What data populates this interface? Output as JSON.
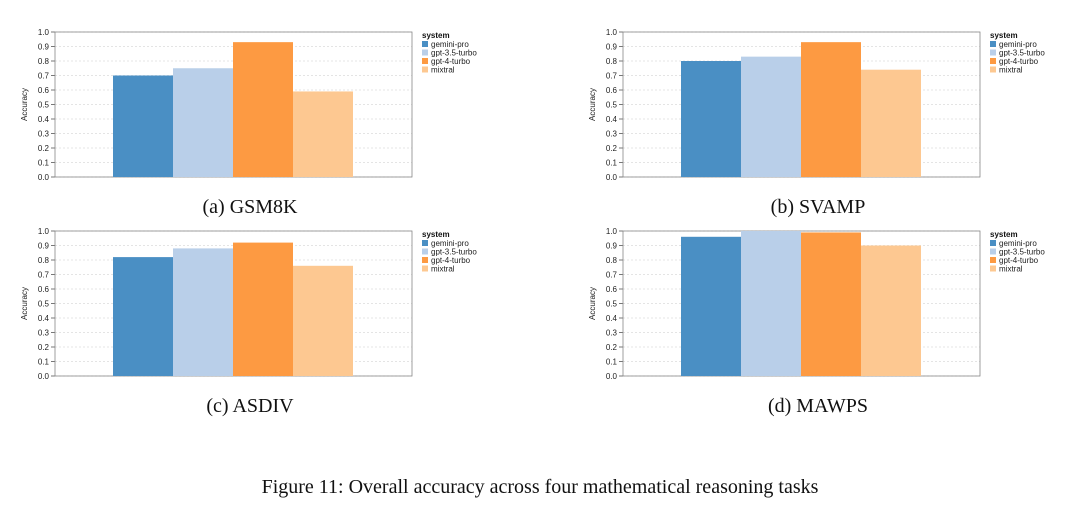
{
  "figure_caption": "Figure 11: Overall accuracy across four mathematical reasoning tasks",
  "colors": {
    "gemini-pro": "#4a8fc4",
    "gpt-3.5-turbo": "#b9cfe9",
    "gpt-4-turbo": "#fd9a42",
    "mixtral": "#fdc891"
  },
  "chart_data": [
    {
      "type": "bar",
      "caption": "(a) GSM8K",
      "ylabel": "Accuracy",
      "ylim": [
        0,
        1.0
      ],
      "yticks": [
        "0.0",
        "0.1",
        "0.2",
        "0.3",
        "0.4",
        "0.5",
        "0.6",
        "0.7",
        "0.8",
        "0.9",
        "1.0"
      ],
      "legend_title": "system",
      "legend_position": "right",
      "grid": true,
      "series": [
        {
          "name": "gemini-pro",
          "value": 0.7
        },
        {
          "name": "gpt-3.5-turbo",
          "value": 0.75
        },
        {
          "name": "gpt-4-turbo",
          "value": 0.93
        },
        {
          "name": "mixtral",
          "value": 0.59
        }
      ]
    },
    {
      "type": "bar",
      "caption": "(b) SVAMP",
      "ylabel": "Accuracy",
      "ylim": [
        0,
        1.0
      ],
      "yticks": [
        "0.0",
        "0.1",
        "0.2",
        "0.3",
        "0.4",
        "0.5",
        "0.6",
        "0.7",
        "0.8",
        "0.9",
        "1.0"
      ],
      "legend_title": "system",
      "legend_position": "right",
      "grid": true,
      "series": [
        {
          "name": "gemini-pro",
          "value": 0.8
        },
        {
          "name": "gpt-3.5-turbo",
          "value": 0.83
        },
        {
          "name": "gpt-4-turbo",
          "value": 0.93
        },
        {
          "name": "mixtral",
          "value": 0.74
        }
      ]
    },
    {
      "type": "bar",
      "caption": "(c) ASDIV",
      "ylabel": "Accuracy",
      "ylim": [
        0,
        1.0
      ],
      "yticks": [
        "0.0",
        "0.1",
        "0.2",
        "0.3",
        "0.4",
        "0.5",
        "0.6",
        "0.7",
        "0.8",
        "0.9",
        "1.0"
      ],
      "legend_title": "system",
      "legend_position": "right",
      "grid": true,
      "series": [
        {
          "name": "gemini-pro",
          "value": 0.82
        },
        {
          "name": "gpt-3.5-turbo",
          "value": 0.88
        },
        {
          "name": "gpt-4-turbo",
          "value": 0.92
        },
        {
          "name": "mixtral",
          "value": 0.76
        }
      ]
    },
    {
      "type": "bar",
      "caption": "(d) MAWPS",
      "ylabel": "Accuracy",
      "ylim": [
        0,
        1.0
      ],
      "yticks": [
        "0.0",
        "0.1",
        "0.2",
        "0.3",
        "0.4",
        "0.5",
        "0.6",
        "0.7",
        "0.8",
        "0.9",
        "1.0"
      ],
      "legend_title": "system",
      "legend_position": "right",
      "grid": true,
      "series": [
        {
          "name": "gemini-pro",
          "value": 0.96
        },
        {
          "name": "gpt-3.5-turbo",
          "value": 1.0
        },
        {
          "name": "gpt-4-turbo",
          "value": 0.99
        },
        {
          "name": "mixtral",
          "value": 0.9
        }
      ]
    }
  ]
}
